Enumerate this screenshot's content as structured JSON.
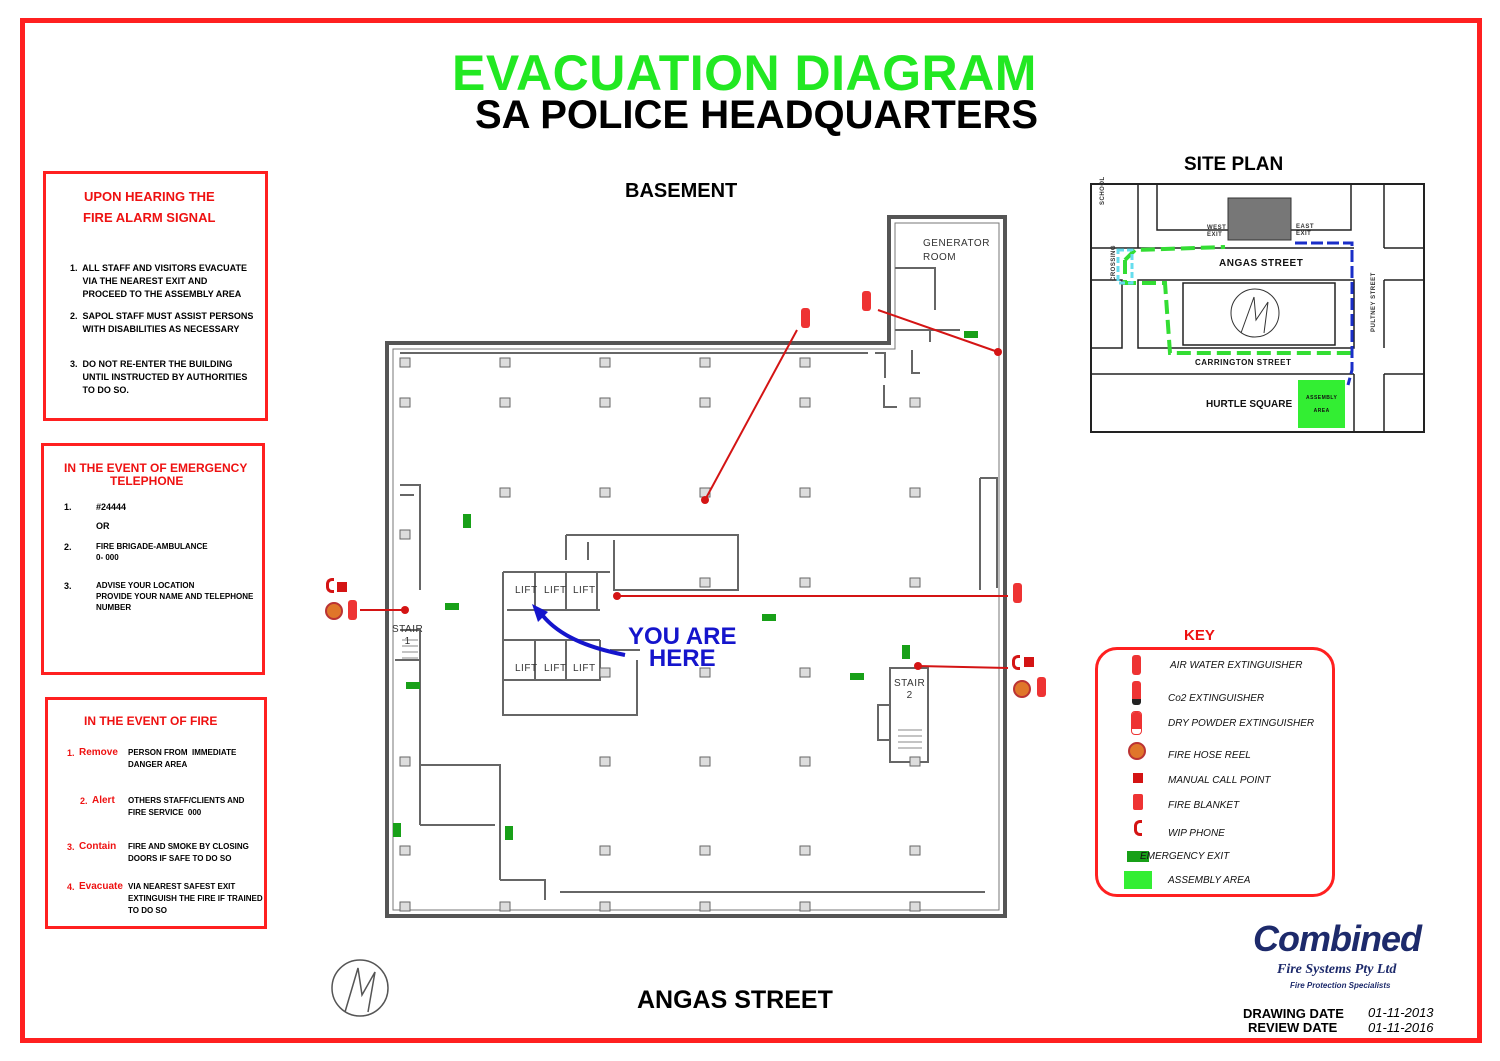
{
  "header": {
    "title": "EVACUATION DIAGRAM",
    "subtitle": "SA POLICE HEADQUARTERS"
  },
  "alarm_box": {
    "heading_1": "UPON HEARING THE",
    "heading_2": "FIRE ALARM SIGNAL",
    "item_1": "1.  ALL STAFF AND VISITORS EVACUATE\n     VIA THE NEAREST EXIT AND\n     PROCEED TO THE ASSEMBLY AREA",
    "item_2": "2.  SAPOL STAFF MUST ASSIST PERSONS\n     WITH DISABILITIES AS NECESSARY",
    "item_3": "3.  DO NOT RE-ENTER THE BUILDING\n     UNTIL INSTRUCTED BY AUTHORITIES\n     TO DO SO."
  },
  "telephone_box": {
    "heading_1": "IN THE EVENT OF EMERGENCY",
    "heading_2": "TELEPHONE",
    "n1": "1.",
    "item_1": "#24444",
    "or": "OR",
    "n2": "2.",
    "item_2": "FIRE BRIGADE-AMBULANCE\n0- 000",
    "n3": "3.",
    "item_3": "ADVISE YOUR LOCATION\nPROVIDE YOUR NAME AND TELEPHONE\nNUMBER"
  },
  "fire_box": {
    "heading": "IN THE EVENT OF FIRE",
    "steps": [
      {
        "num": "1.",
        "word": "Remove",
        "text": "PERSON FROM  IMMEDIATE\nDANGER AREA"
      },
      {
        "num": "2.",
        "word": "Alert",
        "text": "OTHERS STAFF/CLIENTS AND\nFIRE SERVICE  000"
      },
      {
        "num": "3.",
        "word": "Contain",
        "text": "FIRE AND SMOKE BY CLOSING\nDOORS IF SAFE TO DO SO"
      },
      {
        "num": "4.",
        "word": "Evacuate",
        "text": "VIA NEAREST SAFEST EXIT\nEXTINGUISH THE FIRE IF TRAINED\nTO DO SO"
      }
    ]
  },
  "floor_plan": {
    "level": "BASEMENT",
    "street": "ANGAS STREET",
    "generator_room": "GENERATOR\nROOM",
    "lift": "LIFT",
    "stair_1": "STAIR\n1",
    "stair_2": "STAIR\n2",
    "exit_sign": "EXIT",
    "you_are_here": "YOU ARE\nHERE"
  },
  "site_plan": {
    "title": "SITE PLAN",
    "school": "SCHOOL",
    "west_exit": "WEST\nEXIT",
    "east_exit": "EAST\nEXIT",
    "angas_street": "ANGAS STREET",
    "crossing": "CROSSING",
    "pulteney_street": "PULTNEY STREET",
    "carrington_street": "CARRINGTON STREET",
    "hurtle_square": "HURTLE SQUARE",
    "assembly_area": "ASSEMBLY\nAREA"
  },
  "key": {
    "title": "KEY",
    "items": [
      {
        "icon": "air-water-extinguisher-icon",
        "label": "AIR WATER EXTINGUISHER"
      },
      {
        "icon": "co2-extinguisher-icon",
        "label": "Co2 EXTINGUISHER"
      },
      {
        "icon": "dry-powder-extinguisher-icon",
        "label": "DRY POWDER EXTINGUISHER"
      },
      {
        "icon": "fire-hose-reel-icon",
        "label": "FIRE HOSE REEL"
      },
      {
        "icon": "manual-call-point-icon",
        "label": "MANUAL CALL POINT"
      },
      {
        "icon": "fire-blanket-icon",
        "label": "FIRE BLANKET"
      },
      {
        "icon": "wip-phone-icon",
        "label": "WIP PHONE"
      },
      {
        "icon": "exit-sign-icon",
        "label": "EMERGENCY EXIT"
      },
      {
        "icon": "assembly-area-icon",
        "label": "ASSEMBLY AREA"
      }
    ]
  },
  "company": {
    "name": "Combined",
    "sub": "Fire Systems Pty Ltd",
    "tagline": "Fire Protection Specialists"
  },
  "dates": {
    "drawing_label": "DRAWING DATE",
    "drawing_value": "01-11-2013",
    "review_label": "REVIEW DATE",
    "review_value": "01-11-2016"
  },
  "colors": {
    "frame": "#ff2020",
    "title_green": "#22e822",
    "route_green": "#33dd33",
    "route_blue": "#1a2ec8",
    "you_blue": "#1515cc",
    "key_red": "#ee1111",
    "logo_navy": "#1d2a6b"
  }
}
